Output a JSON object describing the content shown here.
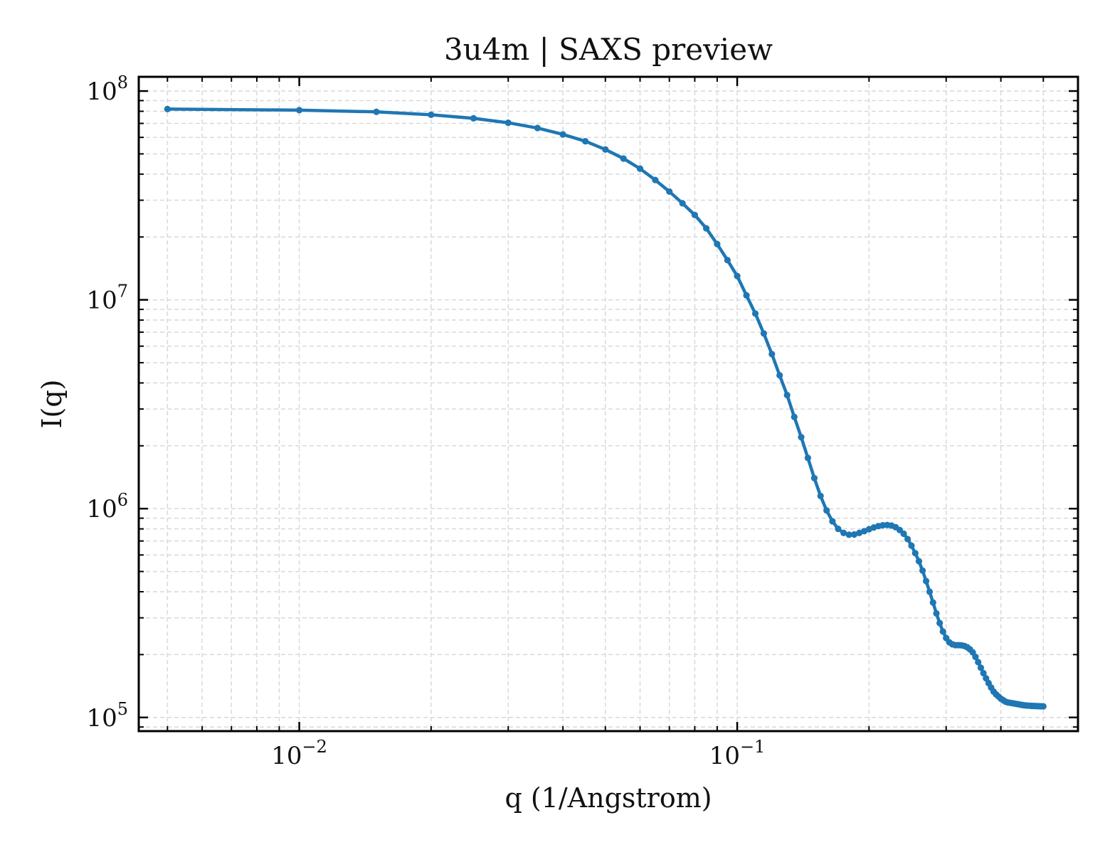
{
  "chart_data": {
    "type": "line",
    "title": "3u4m | SAXS preview",
    "xlabel": "q (1/Angstrom)",
    "ylabel": "I(q)",
    "xscale": "log",
    "yscale": "log",
    "xlim": [
      0.0043,
      0.6
    ],
    "ylim": [
      86000,
      117000000
    ],
    "grid": true,
    "legend": "none",
    "x_ticks": [
      {
        "value": 0.01,
        "base": "10",
        "exp": "−2"
      },
      {
        "value": 0.1,
        "base": "10",
        "exp": "−1"
      }
    ],
    "y_ticks": [
      {
        "value": 100000,
        "base": "10",
        "exp": "5"
      },
      {
        "value": 1000000,
        "base": "10",
        "exp": "6"
      },
      {
        "value": 10000000,
        "base": "10",
        "exp": "7"
      },
      {
        "value": 100000000,
        "base": "10",
        "exp": "8"
      }
    ],
    "series": [
      {
        "color": "#1f77b4",
        "x": [
          0.005,
          0.01,
          0.015,
          0.02,
          0.025,
          0.03,
          0.035,
          0.04,
          0.045,
          0.05,
          0.055,
          0.06,
          0.065,
          0.07,
          0.075,
          0.08,
          0.085,
          0.09,
          0.095,
          0.1,
          0.105,
          0.11,
          0.115,
          0.12,
          0.125,
          0.13,
          0.135,
          0.14,
          0.145,
          0.15,
          0.155,
          0.16,
          0.165,
          0.17,
          0.175,
          0.18,
          0.185,
          0.19,
          0.195,
          0.2,
          0.205,
          0.21,
          0.215,
          0.22,
          0.225,
          0.23,
          0.235,
          0.24,
          0.245,
          0.25,
          0.255,
          0.26,
          0.265,
          0.27,
          0.275,
          0.28,
          0.285,
          0.29,
          0.295,
          0.3,
          0.305,
          0.31,
          0.315,
          0.32,
          0.325,
          0.33,
          0.335,
          0.34,
          0.345,
          0.35,
          0.355,
          0.36,
          0.365,
          0.37,
          0.375,
          0.38,
          0.385,
          0.39,
          0.395,
          0.4,
          0.405,
          0.41,
          0.415,
          0.42,
          0.425,
          0.43,
          0.435,
          0.44,
          0.445,
          0.45,
          0.455,
          0.46,
          0.465,
          0.47,
          0.475,
          0.48,
          0.485,
          0.49,
          0.495,
          0.5
        ],
        "y": [
          82000000,
          81000000,
          79500000,
          77000000,
          74000000,
          70500000,
          66500000,
          62000000,
          57500000,
          52500000,
          47500000,
          42500000,
          37500000,
          33000000,
          29000000,
          25500000,
          22000000,
          18500000,
          15500000,
          13000000,
          10500000,
          8600000,
          6900000,
          5500000,
          4350000,
          3500000,
          2750000,
          2200000,
          1750000,
          1400000,
          1150000,
          980000,
          870000,
          800000,
          765000,
          750000,
          752000,
          765000,
          780000,
          797000,
          812000,
          825000,
          832000,
          835000,
          830000,
          815000,
          790000,
          758000,
          715000,
          665000,
          612000,
          560000,
          505000,
          450000,
          400000,
          355000,
          315000,
          283000,
          258000,
          240000,
          229000,
          224000,
          222000,
          222000,
          221500,
          220000,
          217000,
          212000,
          205000,
          195000,
          184000,
          173000,
          163000,
          154000,
          146000,
          139000,
          133000,
          129000,
          126000,
          123000,
          121000,
          119000,
          118000,
          117500,
          117000,
          116500,
          116000,
          115500,
          115000,
          114500,
          114200,
          114000,
          113800,
          113600,
          113500,
          113400,
          113300,
          113200,
          113100,
          113000
        ]
      }
    ]
  }
}
